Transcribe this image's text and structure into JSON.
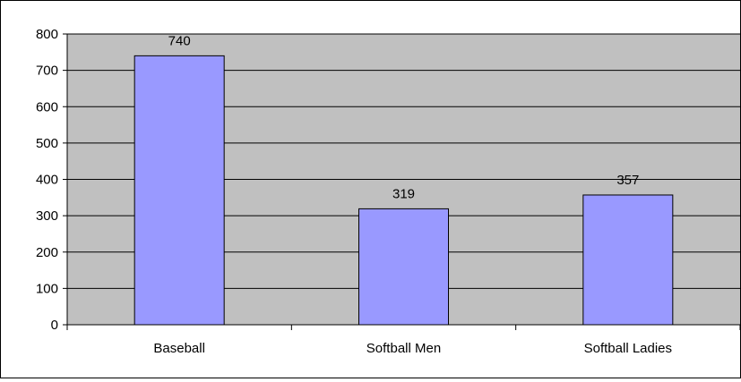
{
  "chart_data": {
    "type": "bar",
    "categories": [
      "Baseball",
      "Softball Men",
      "Softball Ladies"
    ],
    "values": [
      740,
      319,
      357
    ],
    "data_labels": [
      "740",
      "319",
      "357"
    ],
    "title": "",
    "xlabel": "",
    "ylabel": "",
    "ylim": [
      0,
      800
    ],
    "yticks": [
      0,
      100,
      200,
      300,
      400,
      500,
      600,
      700,
      800
    ],
    "grid": true,
    "legend": "none",
    "colors": {
      "bar": "#9999ff",
      "plot_background": "#c0c0c0",
      "gridline": "#000000",
      "bar_border": "#000000"
    }
  }
}
